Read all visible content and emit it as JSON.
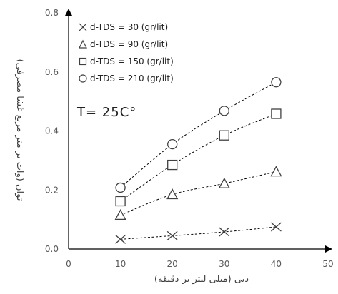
{
  "chart_data": {
    "type": "scatter",
    "x": [
      10,
      20,
      30,
      40
    ],
    "series": [
      {
        "name": "d-TDS = 30 (gr/lit)",
        "marker": "cross",
        "values": [
          0.033,
          0.045,
          0.058,
          0.075
        ]
      },
      {
        "name": "d-TDS = 90 (gr/lit)",
        "marker": "triangle",
        "values": [
          0.115,
          0.185,
          0.222,
          0.262
        ]
      },
      {
        "name": "d-TDS = 150 (gr/lit)",
        "marker": "square",
        "values": [
          0.162,
          0.285,
          0.385,
          0.458
        ]
      },
      {
        "name": "d-TDS = 210 (gr/lit)",
        "marker": "circle",
        "values": [
          0.208,
          0.355,
          0.468,
          0.565
        ]
      }
    ],
    "xlabel": "دبی (میلی لیتر بر دقیقه)",
    "ylabel": "توان (وات بر متر مربع غشا مصرفی)",
    "xlim": [
      0,
      50
    ],
    "ylim": [
      0,
      0.8
    ],
    "xticks": [
      "0",
      "10",
      "20",
      "30",
      "40",
      "50"
    ],
    "yticks": [
      "0.0",
      "0.2",
      "0.4",
      "0.6",
      "0.8"
    ],
    "annotation": "T= 25C°",
    "grid": false,
    "legend_position": "top-left",
    "line_style": "dashed",
    "colors": {
      "axis": "#000000",
      "marker": "#404040",
      "line": "#000000"
    }
  }
}
